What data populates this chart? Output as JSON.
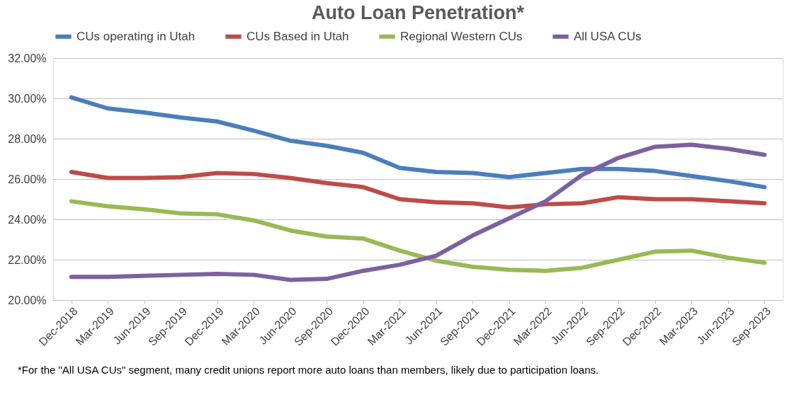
{
  "chart_data": {
    "type": "line",
    "title": "Auto Loan Penetration*",
    "categories": [
      "Dec-2018",
      "Mar-2019",
      "Jun-2019",
      "Sep-2019",
      "Dec-2019",
      "Mar-2020",
      "Jun-2020",
      "Sep-2020",
      "Dec-2020",
      "Mar-2021",
      "Jun-2021",
      "Sep-2021",
      "Dec-2021",
      "Mar-2022",
      "Jun-2022",
      "Sep-2022",
      "Dec-2022",
      "Mar-2023",
      "Jun-2023",
      "Sep-2023"
    ],
    "series": [
      {
        "name": "CUs operating in Utah",
        "color": "#4a7ebb",
        "values": [
          30.05,
          29.5,
          29.3,
          29.05,
          28.85,
          28.4,
          27.9,
          27.65,
          27.3,
          26.55,
          26.35,
          26.3,
          26.1,
          26.3,
          26.5,
          26.5,
          26.4,
          26.15,
          25.9,
          25.6
        ]
      },
      {
        "name": "CUs Based in Utah",
        "color": "#be4b48",
        "values": [
          26.35,
          26.05,
          26.05,
          26.1,
          26.3,
          26.25,
          26.05,
          25.8,
          25.6,
          25.0,
          24.85,
          24.8,
          24.6,
          24.75,
          24.8,
          25.1,
          25.0,
          25.0,
          24.9,
          24.8
        ]
      },
      {
        "name": "Regional Western CUs",
        "color": "#98b954",
        "values": [
          24.9,
          24.65,
          24.5,
          24.3,
          24.25,
          23.95,
          23.45,
          23.15,
          23.05,
          22.45,
          21.95,
          21.65,
          21.5,
          21.45,
          21.6,
          22.0,
          22.4,
          22.45,
          22.1,
          21.85
        ]
      },
      {
        "name": "All USA CUs",
        "color": "#7d60a0",
        "values": [
          21.15,
          21.15,
          21.2,
          21.25,
          21.3,
          21.25,
          21.0,
          21.05,
          21.45,
          21.75,
          22.2,
          23.2,
          24.05,
          24.9,
          26.2,
          27.05,
          27.6,
          27.7,
          27.5,
          27.2
        ]
      }
    ],
    "ylim": [
      20,
      32
    ],
    "yticks": [
      {
        "value": 20,
        "label": "20.00%"
      },
      {
        "value": 22,
        "label": "22.00%"
      },
      {
        "value": 24,
        "label": "24.00%"
      },
      {
        "value": 26,
        "label": "26.00%"
      },
      {
        "value": 28,
        "label": "28.00%"
      },
      {
        "value": 30,
        "label": "30.00%"
      },
      {
        "value": 32,
        "label": "32.00%"
      }
    ],
    "grid": "y",
    "legend": "top",
    "line_style": "solid",
    "annotations": [
      "*For the \"All USA CUs\" segment, many credit unions report more auto loans than members, likely due to participation loans."
    ]
  }
}
